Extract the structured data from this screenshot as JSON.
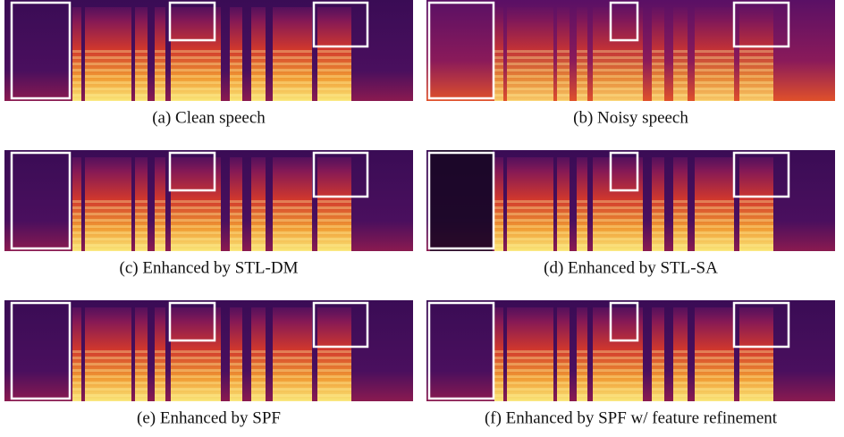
{
  "panels": [
    {
      "caption": "(a) Clean speech"
    },
    {
      "caption": "(b) Noisy speech"
    },
    {
      "caption": "(c) Enhanced by STL-DM"
    },
    {
      "caption": "(d) Enhanced by STL-SA"
    },
    {
      "caption": "(e) Enhanced by SPF"
    },
    {
      "caption": "(f) Enhanced by SPF w/ feature refinement"
    }
  ]
}
